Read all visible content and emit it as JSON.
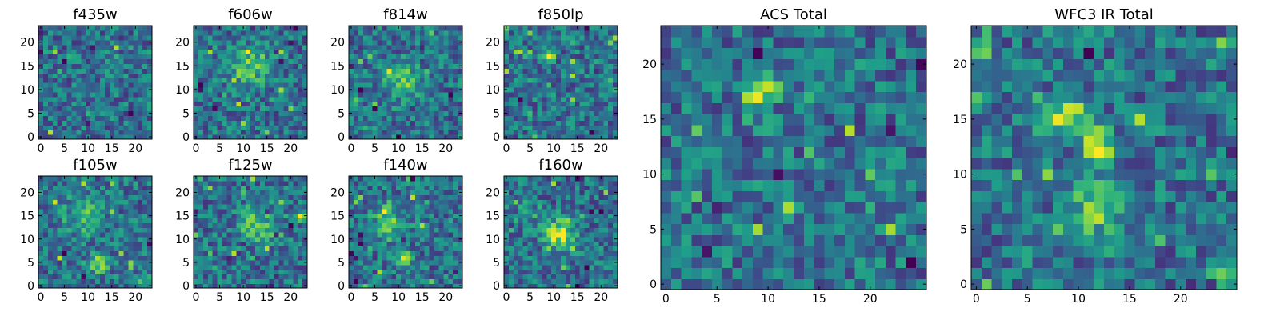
{
  "chart_data": [
    {
      "type": "heatmap",
      "title": "f435w",
      "xticks": [
        "0",
        "5",
        "10",
        "15",
        "20"
      ],
      "yticks": [
        "0",
        "5",
        "10",
        "15",
        "20"
      ],
      "grid_size": [
        24,
        24
      ],
      "colormap": "viridis",
      "hotspots": [],
      "seed": 11
    },
    {
      "type": "heatmap",
      "title": "f606w",
      "xticks": [
        "0",
        "5",
        "10",
        "15",
        "20"
      ],
      "yticks": [
        "0",
        "5",
        "10",
        "15",
        "20"
      ],
      "grid_size": [
        24,
        24
      ],
      "colormap": "viridis",
      "hotspots": [
        {
          "x": 11,
          "y": 15,
          "amp": 0.35,
          "sigma": 3
        }
      ],
      "seed": 23
    },
    {
      "type": "heatmap",
      "title": "f814w",
      "xticks": [
        "0",
        "5",
        "10",
        "15",
        "20"
      ],
      "yticks": [
        "0",
        "5",
        "10",
        "15",
        "20"
      ],
      "grid_size": [
        24,
        24
      ],
      "colormap": "viridis",
      "hotspots": [
        {
          "x": 11,
          "y": 12,
          "amp": 0.35,
          "sigma": 2.5
        }
      ],
      "seed": 37
    },
    {
      "type": "heatmap",
      "title": "f850lp",
      "xticks": [
        "0",
        "5",
        "10",
        "15",
        "20"
      ],
      "yticks": [
        "0",
        "5",
        "10",
        "15",
        "20"
      ],
      "grid_size": [
        24,
        24
      ],
      "colormap": "viridis",
      "hotspots": [
        {
          "x": 9,
          "y": 17,
          "amp": 0.75,
          "sigma": 0.8
        }
      ],
      "seed": 41
    },
    {
      "type": "heatmap",
      "title": "f105w",
      "xticks": [
        "0",
        "5",
        "10",
        "15",
        "20"
      ],
      "yticks": [
        "0",
        "5",
        "10",
        "15",
        "20"
      ],
      "grid_size": [
        24,
        24
      ],
      "colormap": "viridis",
      "hotspots": [
        {
          "x": 12,
          "y": 5,
          "amp": 0.45,
          "sigma": 1.5
        },
        {
          "x": 9,
          "y": 15,
          "amp": 0.25,
          "sigma": 3
        }
      ],
      "seed": 53
    },
    {
      "type": "heatmap",
      "title": "f125w",
      "xticks": [
        "0",
        "5",
        "10",
        "15",
        "20"
      ],
      "yticks": [
        "0",
        "5",
        "10",
        "15",
        "20"
      ],
      "grid_size": [
        24,
        24
      ],
      "colormap": "viridis",
      "hotspots": [
        {
          "x": 13,
          "y": 13,
          "amp": 0.35,
          "sigma": 2.5
        },
        {
          "x": 22,
          "y": 15,
          "amp": 0.4,
          "sigma": 1
        }
      ],
      "seed": 67
    },
    {
      "type": "heatmap",
      "title": "f140w",
      "xticks": [
        "0",
        "5",
        "10",
        "15",
        "20"
      ],
      "yticks": [
        "0",
        "5",
        "10",
        "15",
        "20"
      ],
      "grid_size": [
        24,
        24
      ],
      "colormap": "viridis",
      "hotspots": [
        {
          "x": 8,
          "y": 14,
          "amp": 0.35,
          "sigma": 2.5
        },
        {
          "x": 11,
          "y": 6,
          "amp": 0.45,
          "sigma": 1.2
        }
      ],
      "seed": 71
    },
    {
      "type": "heatmap",
      "title": "f160w",
      "xticks": [
        "0",
        "5",
        "10",
        "15",
        "20"
      ],
      "yticks": [
        "0",
        "5",
        "10",
        "15",
        "20"
      ],
      "grid_size": [
        24,
        24
      ],
      "colormap": "viridis",
      "hotspots": [
        {
          "x": 11,
          "y": 11,
          "amp": 0.55,
          "sigma": 2.2
        },
        {
          "x": 4,
          "y": 16,
          "amp": 0.3,
          "sigma": 1.5
        }
      ],
      "seed": 83
    },
    {
      "type": "heatmap",
      "title": "ACS Total",
      "xticks": [
        "0",
        "5",
        "10",
        "15",
        "20"
      ],
      "yticks": [
        "0",
        "5",
        "10",
        "15",
        "20"
      ],
      "grid_size": [
        26,
        24
      ],
      "colormap": "viridis",
      "hotspots": [
        {
          "x": 9,
          "y": 17.5,
          "amp": 0.7,
          "sigma": 0.9
        },
        {
          "x": 11,
          "y": 18,
          "amp": 0.35,
          "sigma": 0.8
        }
      ],
      "seed": 97
    },
    {
      "type": "heatmap",
      "title": "WFC3 IR Total",
      "xticks": [
        "0",
        "5",
        "10",
        "15",
        "20"
      ],
      "yticks": [
        "0",
        "5",
        "10",
        "15",
        "20"
      ],
      "grid_size": [
        26,
        24
      ],
      "colormap": "viridis",
      "hotspots": [
        {
          "x": 9,
          "y": 15.5,
          "amp": 0.55,
          "sigma": 1.3
        },
        {
          "x": 12,
          "y": 12.5,
          "amp": 0.6,
          "sigma": 1.1
        },
        {
          "x": 12,
          "y": 7,
          "amp": 0.35,
          "sigma": 2
        },
        {
          "x": 0,
          "y": 21,
          "amp": 0.4,
          "sigma": 0.8
        },
        {
          "x": 24,
          "y": 1,
          "amp": 0.4,
          "sigma": 0.8
        }
      ],
      "seed": 109
    }
  ]
}
